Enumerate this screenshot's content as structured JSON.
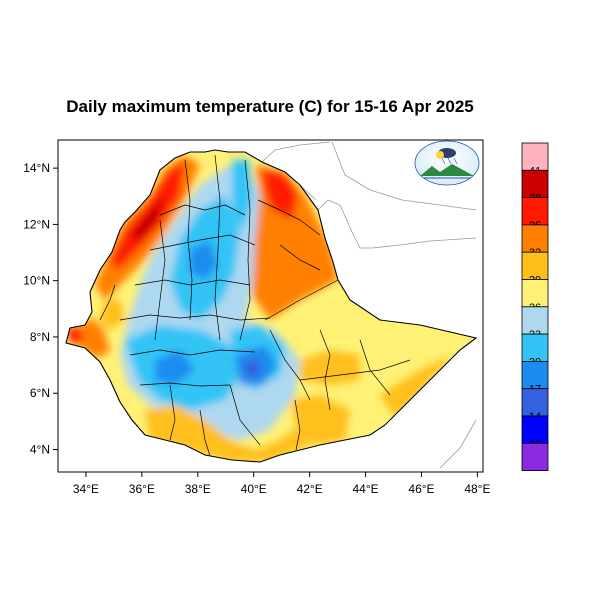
{
  "title": "Daily maximum temperature (C) for 15-16 Apr 2025",
  "map": {
    "region": "Ethiopia",
    "variable": "daily maximum temperature",
    "units": "C",
    "lon_range": [
      33,
      48.2
    ],
    "lat_range": [
      3.2,
      15
    ],
    "lon_ticks": [
      {
        "value": 34,
        "label": "34°E"
      },
      {
        "value": 36,
        "label": "36°E"
      },
      {
        "value": 38,
        "label": "38°E"
      },
      {
        "value": 40,
        "label": "40°E"
      },
      {
        "value": 42,
        "label": "42°E"
      },
      {
        "value": 44,
        "label": "44°E"
      },
      {
        "value": 46,
        "label": "46°E"
      },
      {
        "value": 48,
        "label": "48°E"
      }
    ],
    "lat_ticks": [
      {
        "value": 14,
        "label": "14°N"
      },
      {
        "value": 12,
        "label": "12°N"
      },
      {
        "value": 10,
        "label": "10°N"
      },
      {
        "value": 8,
        "label": "8°N"
      },
      {
        "value": 6,
        "label": "6°N"
      },
      {
        "value": 4,
        "label": "4°N"
      }
    ]
  },
  "colorbar": {
    "levels": [
      {
        "label": "41",
        "color": "#ffb3bf"
      },
      {
        "label": "38",
        "color": "#cc0000"
      },
      {
        "label": "35",
        "color": "#ff1a00"
      },
      {
        "label": "32",
        "color": "#ff8000"
      },
      {
        "label": "29",
        "color": "#ffbf1a"
      },
      {
        "label": "26",
        "color": "#fff176"
      },
      {
        "label": "23",
        "color": "#add8f0"
      },
      {
        "label": "20",
        "color": "#33c4f5"
      },
      {
        "label": "17",
        "color": "#1a8cf0"
      },
      {
        "label": "14",
        "color": "#3560e0"
      },
      {
        "label": "11",
        "color": "#0000ff"
      },
      {
        "label": "",
        "color": "#8a2be2"
      }
    ]
  },
  "logo": {
    "name": "ethiopian-meteorology-institute-logo"
  }
}
